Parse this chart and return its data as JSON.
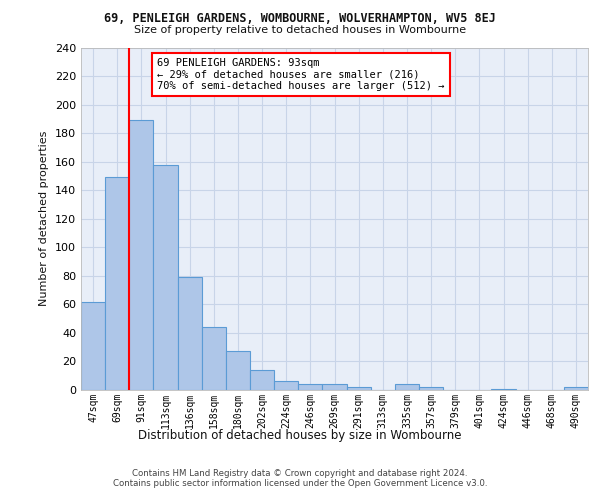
{
  "title1": "69, PENLEIGH GARDENS, WOMBOURNE, WOLVERHAMPTON, WV5 8EJ",
  "title2": "Size of property relative to detached houses in Wombourne",
  "xlabel": "Distribution of detached houses by size in Wombourne",
  "ylabel": "Number of detached properties",
  "footer1": "Contains HM Land Registry data © Crown copyright and database right 2024.",
  "footer2": "Contains public sector information licensed under the Open Government Licence v3.0.",
  "categories": [
    "47sqm",
    "69sqm",
    "91sqm",
    "113sqm",
    "136sqm",
    "158sqm",
    "180sqm",
    "202sqm",
    "224sqm",
    "246sqm",
    "269sqm",
    "291sqm",
    "313sqm",
    "335sqm",
    "357sqm",
    "379sqm",
    "401sqm",
    "424sqm",
    "446sqm",
    "468sqm",
    "490sqm"
  ],
  "values": [
    62,
    149,
    189,
    158,
    79,
    44,
    27,
    14,
    6,
    4,
    4,
    2,
    0,
    4,
    2,
    0,
    0,
    1,
    0,
    0,
    2
  ],
  "bar_color": "#aec6e8",
  "bar_edge_color": "#5b9bd5",
  "bar_linewidth": 0.8,
  "grid_color": "#c8d4e8",
  "bg_color": "#e8eef8",
  "red_line_x": 1.5,
  "annotation_title": "69 PENLEIGH GARDENS: 93sqm",
  "annotation_line1": "← 29% of detached houses are smaller (216)",
  "annotation_line2": "70% of semi-detached houses are larger (512) →",
  "ylim": [
    0,
    240
  ],
  "yticks": [
    0,
    20,
    40,
    60,
    80,
    100,
    120,
    140,
    160,
    180,
    200,
    220,
    240
  ]
}
